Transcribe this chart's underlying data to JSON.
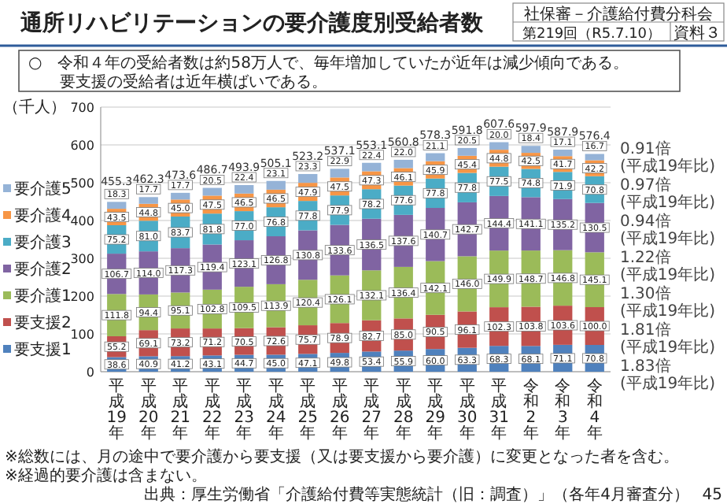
{
  "chart_data": {
    "type": "bar",
    "stacked": true,
    "title": "通所リハビリテーションの要介護度別受給者数",
    "subtitle": "○　令和４年の受給者数は約58万人で、毎年増加していたが近年は減少傾向である。要支援の受給者は近年横ばいである。",
    "ylabel": "（千人）",
    "categories": [
      "平成19年",
      "平成20年",
      "平成21年",
      "平成22年",
      "平成23年",
      "平成24年",
      "平成25年",
      "平成26年",
      "平成27年",
      "平成28年",
      "平成29年",
      "平成30年",
      "平成31年",
      "令和2年",
      "令和3年",
      "令和4年"
    ],
    "series": [
      {
        "name": "要支援1",
        "color": "#4f81bd",
        "values": [
          38.6,
          40.9,
          41.2,
          43.1,
          44.7,
          45.0,
          47.1,
          49.8,
          53.4,
          55.9,
          60.0,
          63.3,
          68.3,
          68.1,
          71.1,
          70.8
        ],
        "value_labels": [
          "38.6",
          "40.9",
          "41.2",
          "43.1",
          "44.7",
          "45.0",
          "47.1",
          "49.8",
          "53.4",
          "55.9",
          "60.0",
          "63.3",
          "68.3",
          "68.1",
          "71.1",
          "70.8"
        ]
      },
      {
        "name": "要支援2",
        "color": "#c0504d",
        "values": [
          55.2,
          69.1,
          73.2,
          71.2,
          70.5,
          72.6,
          75.7,
          78.9,
          82.7,
          85.0,
          90.5,
          96.1,
          102.3,
          103.8,
          103.6,
          100.0
        ],
        "value_labels": [
          "55.2",
          "69.1",
          "73.2",
          "71.2",
          "70.5",
          "72.6",
          "75.7",
          "78.9",
          "82.7",
          "85.0",
          "90.5",
          "96.1",
          "102.3",
          "103.8",
          "103.6",
          "100.0"
        ]
      },
      {
        "name": "要介護1",
        "color": "#9bbb59",
        "values": [
          111.8,
          94.4,
          95.1,
          102.8,
          109.5,
          113.9,
          120.4,
          126.1,
          132.1,
          136.4,
          142.1,
          146.0,
          149.9,
          148.7,
          146.8,
          145.1
        ],
        "value_labels": [
          "111.8",
          "94.4",
          "95.1",
          "102.8",
          "109.5",
          "113.9",
          "120.4",
          "126.1",
          "132.1",
          "136.4",
          "142.1",
          "146.0",
          "149.9",
          "148.7",
          "146.8",
          "145.1"
        ]
      },
      {
        "name": "要介護2",
        "color": "#8064a2",
        "values": [
          106.7,
          114.0,
          117.3,
          119.4,
          123.1,
          126.8,
          130.8,
          133.6,
          136.5,
          137.6,
          140.7,
          142.7,
          144.4,
          141.1,
          135.2,
          130.5
        ],
        "value_labels": [
          "106.7",
          "114.0",
          "117.3",
          "119.4",
          "123.1",
          "126.8",
          "130.8",
          "133.6",
          "136.5",
          "137.6",
          "140.7",
          "142.7",
          "144.4",
          "141.1",
          "135.2",
          "130.5"
        ]
      },
      {
        "name": "要介護3",
        "color": "#4bacc6",
        "values": [
          75.2,
          81.0,
          83.7,
          81.8,
          77.0,
          76.8,
          77.8,
          77.9,
          78.2,
          77.6,
          77.8,
          77.8,
          77.5,
          74.8,
          71.9,
          70.8
        ],
        "value_labels": [
          "75.2",
          "81.0",
          "83.7",
          "81.8",
          "77.0",
          "76.8",
          "77.8",
          "77.9",
          "78.2",
          "77.6",
          "77.8",
          "77.8",
          "77.5",
          "74.8",
          "71.9",
          "70.8"
        ]
      },
      {
        "name": "要介護4",
        "color": "#f79646",
        "values": [
          43.5,
          44.8,
          45.0,
          47.5,
          46.5,
          46.5,
          47.9,
          47.5,
          47.3,
          46.1,
          45.9,
          45.4,
          44.8,
          42.5,
          41.7,
          42.2
        ],
        "value_labels": [
          "43.5",
          "44.8",
          "45.0",
          "47.5",
          "46.5",
          "46.5",
          "47.9",
          "47.5",
          "47.3",
          "46.1",
          "45.9",
          "45.4",
          "44.8",
          "42.5",
          "41.7",
          "42.2"
        ]
      },
      {
        "name": "要介護5",
        "color": "#95b3d7",
        "values": [
          18.3,
          17.7,
          17.7,
          20.5,
          22.4,
          23.1,
          23.3,
          22.9,
          22.4,
          22.0,
          21.1,
          20.5,
          20.0,
          18.4,
          17.1,
          16.7
        ],
        "value_labels": [
          "18.3",
          "17.7",
          "17.7",
          "20.5",
          "22.4",
          "23.1",
          "23.3",
          "22.9",
          "22.4",
          "22.0",
          "21.1",
          "20.5",
          "20.0",
          "18.4",
          "17.1",
          "16.7"
        ]
      }
    ],
    "ylim": [
      0,
      700
    ],
    "yticks": [
      0,
      100,
      200,
      300,
      400,
      500,
      600,
      700
    ],
    "grid": "y",
    "legend": "left",
    "annotations": [
      "社保審－介護給付費分科会",
      "第219回（R5.7.10）",
      "資料３",
      "0.91倍\n(平成19年比)",
      "0.97倍\n(平成19年比)",
      "0.94倍\n(平成19年比)",
      "1.22倍\n(平成19年比)",
      "1.30倍\n(平成19年比)",
      "1.81倍\n(平成19年比)",
      "1.83倍\n(平成19年比)",
      "※総数には、月の途中で要介護から要支援（又は要支援から要介護）に変更となった者を含む。",
      "※経過的要介護は含まない。",
      "出典：厚生労働省「介護給付費等実態統計（旧：調査）」（各年4月審査分）",
      "45",
      {
        "text": "455.3",
        "x": "平成19年",
        "y": 455.3
      },
      {
        "text": "462.3",
        "x": "平成20年",
        "y": 462.3
      },
      {
        "text": "473.6",
        "x": "平成21年",
        "y": 473.6
      },
      {
        "text": "486.7",
        "x": "平成22年",
        "y": 486.7
      },
      {
        "text": "493.9",
        "x": "平成23年",
        "y": 493.9
      },
      {
        "text": "505.1",
        "x": "平成24年",
        "y": 505.1
      },
      {
        "text": "523.2",
        "x": "平成25年",
        "y": 523.2
      },
      {
        "text": "537.1",
        "x": "平成26年",
        "y": 537.1
      },
      {
        "text": "553.1",
        "x": "平成27年",
        "y": 553.1
      },
      {
        "text": "560.8",
        "x": "平成28年",
        "y": 560.8
      },
      {
        "text": "578.3",
        "x": "平成29年",
        "y": 578.3
      },
      {
        "text": "591.8",
        "x": "平成30年",
        "y": 591.8
      },
      {
        "text": "607.6",
        "x": "平成31年",
        "y": 607.6
      },
      {
        "text": "597.9",
        "x": "令和2年",
        "y": 597.9
      },
      {
        "text": "587.9",
        "x": "令和3年",
        "y": 587.9
      },
      {
        "text": "576.4",
        "x": "令和4年",
        "y": 576.4
      }
    ]
  }
}
